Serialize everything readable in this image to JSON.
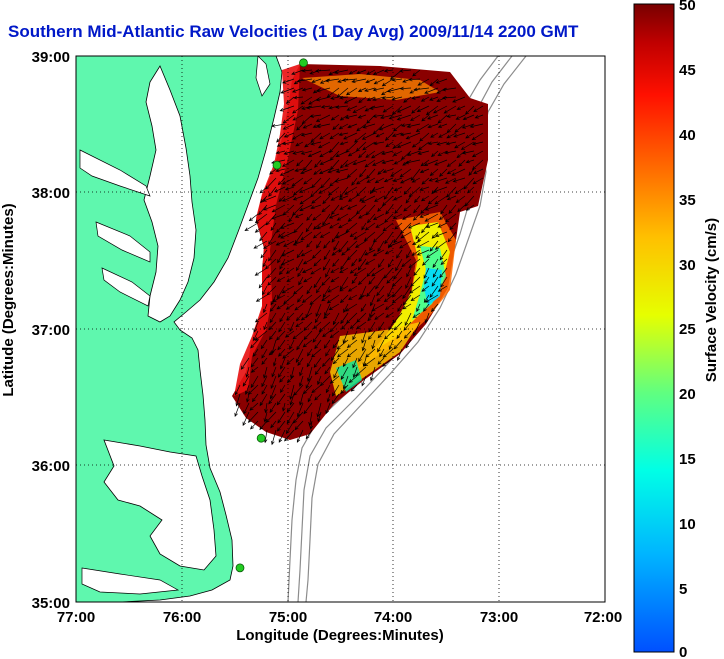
{
  "title": "Southern Mid-Atlantic Raw Velocities (1 Day Avg) 2009/11/14 2200 GMT",
  "map": {
    "xlabel": "Longitude (Degrees:Minutes)",
    "ylabel": "Latitude (Degrees:Minutes)",
    "x_ticks": [
      "77:00",
      "76:00",
      "75:00",
      "74:00",
      "73:00",
      "72:00"
    ],
    "y_ticks": [
      "39:00",
      "38:00",
      "37:00",
      "36:00",
      "35:00"
    ],
    "lon_range": [
      -77,
      -72
    ],
    "lat_range": [
      35,
      39
    ],
    "colors": {
      "land": "#5ff7ae",
      "coast": "#000000",
      "bathymetry": "#8c8c8c",
      "station": "#22cc22"
    },
    "stations": [
      {
        "lon": -74.85,
        "lat": 38.95
      },
      {
        "lon": -75.1,
        "lat": 38.2
      },
      {
        "lon": -75.25,
        "lat": 36.2
      },
      {
        "lon": -75.45,
        "lat": 35.25
      }
    ]
  },
  "colorbar": {
    "label": "Surface Velocity (cm/s)",
    "ticks": [
      "50",
      "45",
      "40",
      "35",
      "30",
      "25",
      "20",
      "15",
      "10",
      "5",
      "0"
    ],
    "min": 0,
    "max": 50,
    "colormap": [
      "#0050ff",
      "#00b4ff",
      "#00ffe6",
      "#60ff80",
      "#e6ff00",
      "#ffc000",
      "#ff6000",
      "#ff1000",
      "#c00000",
      "#780000"
    ]
  }
}
